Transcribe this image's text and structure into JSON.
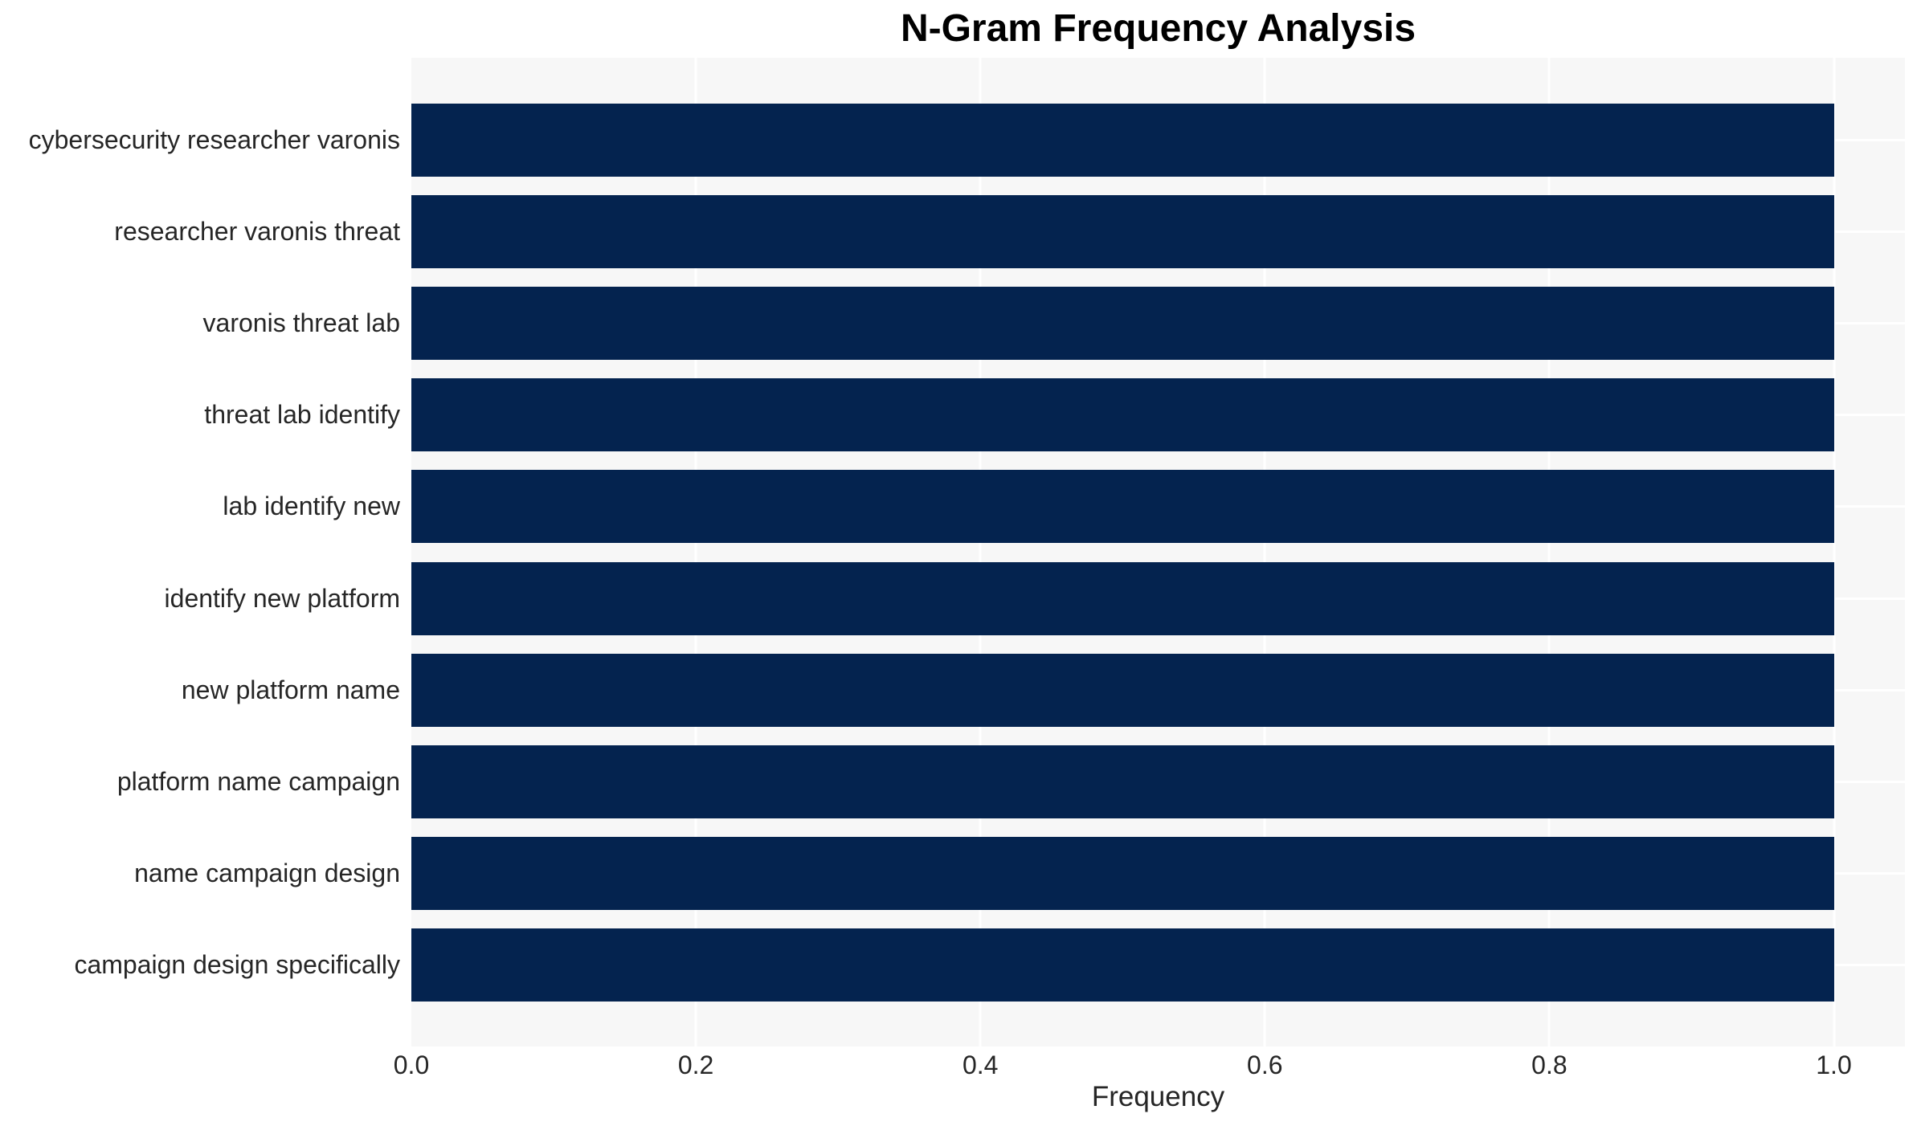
{
  "chart_data": {
    "type": "bar",
    "orientation": "horizontal",
    "title": "N-Gram Frequency Analysis",
    "xlabel": "Frequency",
    "ylabel": "",
    "categories": [
      "cybersecurity researcher varonis",
      "researcher varonis threat",
      "varonis threat lab",
      "threat lab identify",
      "lab identify new",
      "identify new platform",
      "new platform name",
      "platform name campaign",
      "name campaign design",
      "campaign design specifically"
    ],
    "values": [
      1.0,
      1.0,
      1.0,
      1.0,
      1.0,
      1.0,
      1.0,
      1.0,
      1.0,
      1.0
    ],
    "x_ticks": [
      "0.0",
      "0.2",
      "0.4",
      "0.6",
      "0.8",
      "1.0"
    ],
    "xlim": [
      0.0,
      1.05
    ],
    "grid": "on",
    "legend": "none",
    "colors": {
      "bar": "#04234f",
      "plot_background": "#f7f7f7",
      "gridline": "#ffffff",
      "tick_text": "#262626",
      "title_text": "#000000"
    }
  }
}
